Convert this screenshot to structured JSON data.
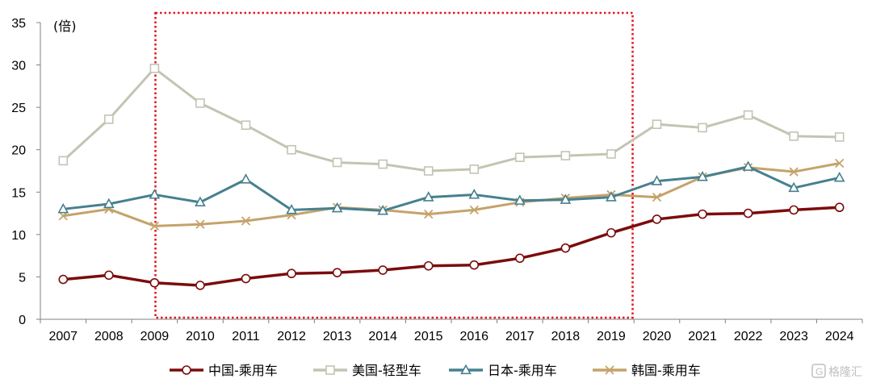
{
  "chart_data": {
    "type": "line",
    "unit_label": "(倍)",
    "ylim": [
      0,
      35
    ],
    "yticks": [
      0,
      5,
      10,
      15,
      20,
      25,
      30,
      35
    ],
    "x": [
      "2007",
      "2008",
      "2009",
      "2010",
      "2011",
      "2012",
      "2013",
      "2014",
      "2015",
      "2016",
      "2017",
      "2018",
      "2019",
      "2020",
      "2021",
      "2022",
      "2023",
      "2024"
    ],
    "highlight_range": [
      "2010",
      "2019"
    ],
    "grid": false,
    "legend_position": "bottom",
    "series": [
      {
        "name": "中国-乘用车",
        "color": "#7b0c0c",
        "marker": "circle",
        "values": [
          4.7,
          5.2,
          4.3,
          4.0,
          4.8,
          5.4,
          5.5,
          5.8,
          6.3,
          6.4,
          7.2,
          8.4,
          10.2,
          11.8,
          12.4,
          12.5,
          12.9,
          13.2
        ]
      },
      {
        "name": "美国-轻型车",
        "color": "#c4c4b3",
        "marker": "square",
        "values": [
          18.7,
          23.6,
          29.6,
          25.5,
          22.9,
          20.0,
          18.5,
          18.3,
          17.5,
          17.7,
          19.1,
          19.3,
          19.5,
          23.0,
          22.6,
          24.1,
          21.6,
          21.5
        ]
      },
      {
        "name": "日本-乘用车",
        "color": "#46808f",
        "marker": "triangle",
        "values": [
          13.0,
          13.6,
          14.7,
          13.8,
          16.5,
          12.9,
          13.1,
          12.8,
          14.4,
          14.7,
          14.0,
          14.1,
          14.4,
          16.3,
          16.8,
          18.0,
          15.5,
          16.7
        ]
      },
      {
        "name": "韩国-乘用车",
        "color": "#c4a36a",
        "marker": "x",
        "values": [
          12.2,
          13.0,
          11.0,
          11.2,
          11.6,
          12.3,
          13.2,
          12.9,
          12.4,
          12.9,
          13.8,
          14.3,
          14.7,
          14.4,
          16.8,
          17.9,
          17.4,
          18.4
        ]
      }
    ]
  },
  "watermark": {
    "text": "格隆汇"
  }
}
